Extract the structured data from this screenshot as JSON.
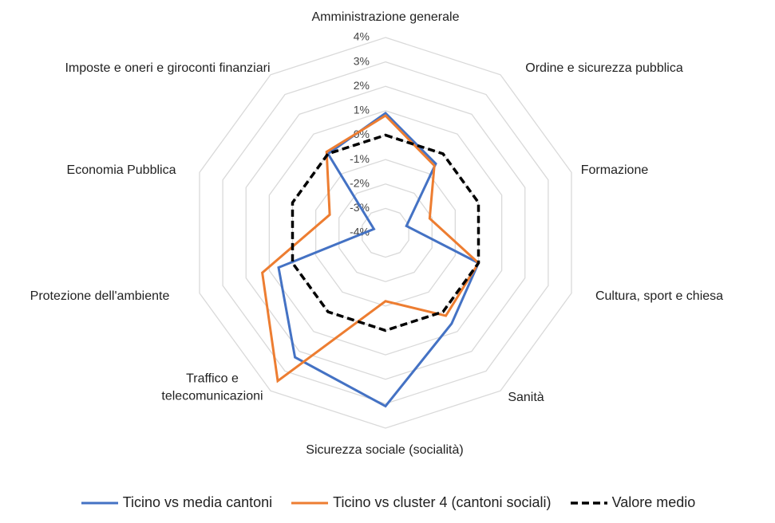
{
  "chart_data": {
    "type": "radar",
    "categories": [
      "Amministrazione generale",
      "Ordine e sicurezza pubblica",
      "Formazione",
      "Cultura, sport e chiesa",
      "Sanità",
      "Sicurezza sociale (socialità)",
      "Traffico e telecomunicazioni",
      "Protezione dell'ambiente",
      "Economia Pubblica",
      "Imposte e oneri e giroconti finanziari"
    ],
    "series": [
      {
        "name": "Ticino vs media cantoni",
        "color": "#4472c4",
        "dash": false,
        "values": [
          0.9,
          -0.5,
          -3.1,
          0.0,
          0.6,
          3.1,
          2.3,
          0.6,
          -3.5,
          0.0
        ]
      },
      {
        "name": "Ticino vs cluster 4 (cantoni sociali)",
        "color": "#ed7d31",
        "dash": false,
        "values": [
          0.8,
          -0.6,
          -2.1,
          0.0,
          0.2,
          -1.2,
          3.5,
          1.3,
          -1.6,
          0.1
        ]
      },
      {
        "name": "Valore medio",
        "color": "#000000",
        "dash": true,
        "values": [
          0,
          0,
          0,
          0,
          0,
          0,
          0,
          0,
          0,
          0
        ]
      }
    ],
    "ylim": [
      -4,
      4
    ],
    "yticks": [
      {
        "value": -4,
        "label": "-4%"
      },
      {
        "value": -3,
        "label": "-3%"
      },
      {
        "value": -2,
        "label": "-2%"
      },
      {
        "value": -1,
        "label": "-1%"
      },
      {
        "value": 0,
        "label": "0%"
      },
      {
        "value": 1,
        "label": "1%"
      },
      {
        "value": 2,
        "label": "2%"
      },
      {
        "value": 3,
        "label": "3%"
      },
      {
        "value": 4,
        "label": "4%"
      }
    ],
    "grid": true
  }
}
